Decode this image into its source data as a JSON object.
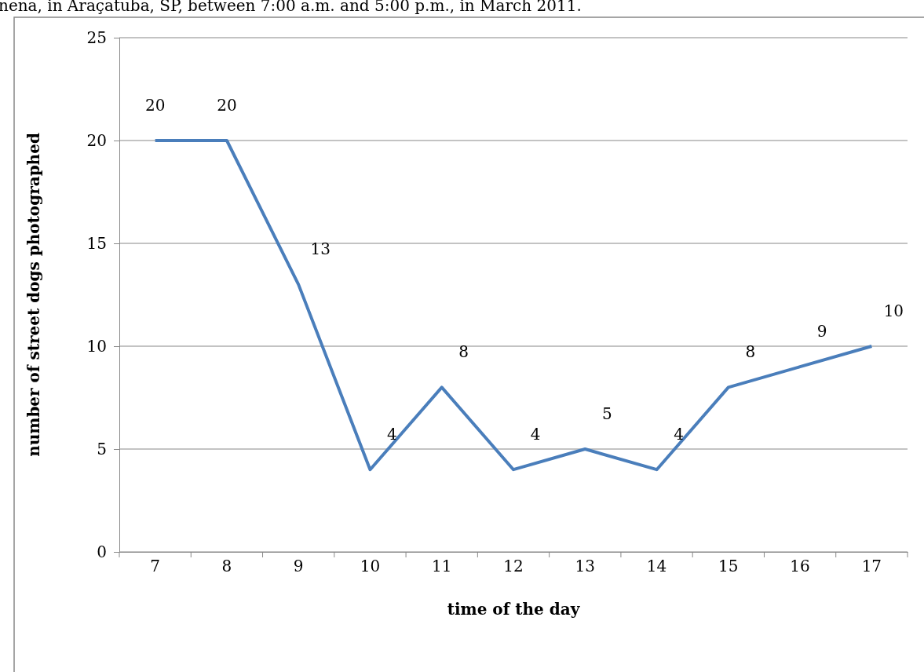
{
  "chart_data": {
    "type": "line",
    "title": "nena, in Araçatuba, SP, between 7:00 a.m. and 5:00 p.m., in March 2011.",
    "xlabel": "time of the day",
    "ylabel": "number of street dogs photographed",
    "categories": [
      "7",
      "8",
      "9",
      "10",
      "11",
      "12",
      "13",
      "14",
      "15",
      "16",
      "17"
    ],
    "series": [
      {
        "color": "#4a7ebb",
        "values": [
          20,
          20,
          13,
          4,
          8,
          4,
          5,
          4,
          8,
          9,
          10
        ]
      }
    ],
    "ylim": [
      0,
      25
    ],
    "yticks": [
      0,
      5,
      10,
      15,
      20,
      25
    ],
    "grid": "y",
    "data_labels": true,
    "legend": false,
    "marker": "none",
    "line_style": "solid"
  }
}
